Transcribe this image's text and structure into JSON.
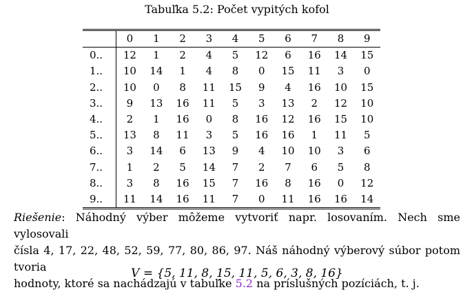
{
  "caption": "Tabuľka 5.2: Počet vypitých kofol",
  "table": {
    "headers": [
      "",
      "0",
      "1",
      "2",
      "3",
      "4",
      "5",
      "6",
      "7",
      "8",
      "9"
    ],
    "rows": [
      {
        "label": "0..",
        "cells": [
          "12",
          "1",
          "2",
          "4",
          "5",
          "12",
          "6",
          "16",
          "14",
          "15"
        ]
      },
      {
        "label": "1..",
        "cells": [
          "10",
          "14",
          "1",
          "4",
          "8",
          "0",
          "15",
          "11",
          "3",
          "0"
        ]
      },
      {
        "label": "2..",
        "cells": [
          "10",
          "0",
          "8",
          "11",
          "15",
          "9",
          "4",
          "16",
          "10",
          "15"
        ]
      },
      {
        "label": "3..",
        "cells": [
          "9",
          "13",
          "16",
          "11",
          "5",
          "3",
          "13",
          "2",
          "12",
          "10"
        ]
      },
      {
        "label": "4..",
        "cells": [
          "2",
          "1",
          "16",
          "0",
          "8",
          "16",
          "12",
          "16",
          "15",
          "10"
        ]
      },
      {
        "label": "5..",
        "cells": [
          "13",
          "8",
          "11",
          "3",
          "5",
          "16",
          "16",
          "1",
          "11",
          "5"
        ]
      },
      {
        "label": "6..",
        "cells": [
          "3",
          "14",
          "6",
          "13",
          "9",
          "4",
          "10",
          "10",
          "3",
          "6"
        ]
      },
      {
        "label": "7..",
        "cells": [
          "1",
          "2",
          "5",
          "14",
          "7",
          "2",
          "7",
          "6",
          "5",
          "8"
        ]
      },
      {
        "label": "8..",
        "cells": [
          "3",
          "8",
          "16",
          "15",
          "7",
          "16",
          "8",
          "16",
          "0",
          "12"
        ]
      },
      {
        "label": "9..",
        "cells": [
          "11",
          "14",
          "16",
          "11",
          "7",
          "0",
          "11",
          "16",
          "16",
          "14"
        ]
      }
    ]
  },
  "solution": {
    "label": "Riešenie",
    "line1": ": Náhodný výber môžeme vytvoriť napr. losovaním. Nech sme vylosovali",
    "line2": "čísla 4, 17, 22, 48, 52, 59, 77, 80, 86, 97. Náš náhodný výberový súbor potom tvoria",
    "line3_before": "hodnoty, ktoré sa nachádzajú v tabuľke ",
    "line3_ref": "5.2",
    "line3_after": " na príslušných pozíciách, t. j.",
    "formula": "V = {5, 11, 8, 15, 11, 5, 6, 3, 8, 16}"
  },
  "colors": {
    "reference_link": "#8b2fc9"
  }
}
